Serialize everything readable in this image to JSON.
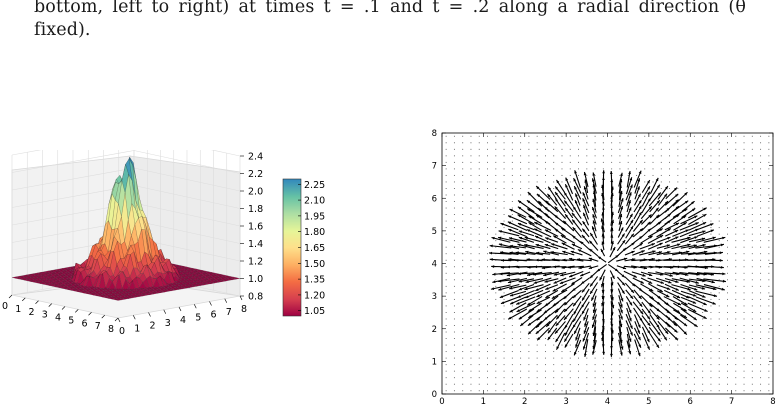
{
  "caption": {
    "line1": "bottom, left to right) at times t = .1 and t = .2 along a radial direction (θ",
    "line2": "fixed)."
  },
  "chart_data": [
    {
      "type": "surface",
      "colormap": "Spectral",
      "zlim": [
        0.8,
        2.4
      ],
      "x_ticks": [
        "0",
        "1",
        "2",
        "3",
        "4",
        "5",
        "6",
        "7",
        "8"
      ],
      "y_ticks": [
        "0",
        "1",
        "2",
        "3",
        "4",
        "5",
        "6",
        "7",
        "8"
      ],
      "z_ticks": [
        "0.8",
        "1.0",
        "1.2",
        "1.4",
        "1.6",
        "1.8",
        "2.0",
        "2.2",
        "2.4"
      ],
      "colorbar_ticks": [
        "1.05",
        "1.20",
        "1.35",
        "1.50",
        "1.65",
        "1.80",
        "1.95",
        "2.10",
        "2.25"
      ],
      "colorbar_range": [
        1.0,
        2.3
      ],
      "base_value": 1.0,
      "peak_value": 2.35,
      "peak_center": [
        4,
        4
      ]
    },
    {
      "type": "quiver",
      "xlim": [
        0,
        8
      ],
      "ylim": [
        0,
        8
      ],
      "x_ticks": [
        "0",
        "1",
        "2",
        "3",
        "4",
        "5",
        "6",
        "7",
        "8"
      ],
      "y_ticks": [
        "0",
        "1",
        "2",
        "3",
        "4",
        "5",
        "6",
        "7",
        "8"
      ],
      "center": [
        4,
        4
      ],
      "ellipse_radii": [
        2.6,
        2.6
      ],
      "grid_spacing": 0.2,
      "arrow_color": "#000000"
    }
  ]
}
